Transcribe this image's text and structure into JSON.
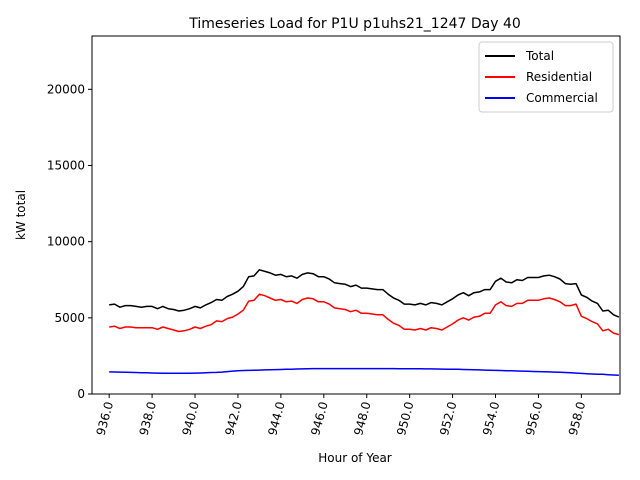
{
  "chart_data": {
    "type": "line",
    "title": "Timeseries Load for P1U p1uhs21_1247  Day 40",
    "xlabel": "Hour of Year",
    "ylabel": "kW total",
    "xlim": [
      935.2,
      959.8
    ],
    "ylim": [
      0,
      23500
    ],
    "xticks": [
      936,
      938,
      940,
      942,
      944,
      946,
      948,
      950,
      952,
      954,
      956,
      958
    ],
    "xtick_labels": [
      "936.0",
      "938.0",
      "940.0",
      "942.0",
      "944.0",
      "946.0",
      "948.0",
      "950.0",
      "952.0",
      "954.0",
      "956.0",
      "958.0"
    ],
    "yticks": [
      0,
      5000,
      10000,
      15000,
      20000
    ],
    "ytick_labels": [
      "0",
      "5000",
      "10000",
      "15000",
      "20000"
    ],
    "grid": false,
    "legend_position": "top-right",
    "x": [
      936.0,
      936.25,
      936.5,
      936.75,
      937.0,
      937.25,
      937.5,
      937.75,
      938.0,
      938.25,
      938.5,
      938.75,
      939.0,
      939.25,
      939.5,
      939.75,
      940.0,
      940.25,
      940.5,
      940.75,
      941.0,
      941.25,
      941.5,
      941.75,
      942.0,
      942.25,
      942.5,
      942.75,
      943.0,
      943.25,
      943.5,
      943.75,
      944.0,
      944.25,
      944.5,
      944.75,
      945.0,
      945.25,
      945.5,
      945.75,
      946.0,
      946.25,
      946.5,
      946.75,
      947.0,
      947.25,
      947.5,
      947.75,
      948.0,
      948.25,
      948.5,
      948.75,
      949.0,
      949.25,
      949.5,
      949.75,
      950.0,
      950.25,
      950.5,
      950.75,
      951.0,
      951.25,
      951.5,
      951.75,
      952.0,
      952.25,
      952.5,
      952.75,
      953.0,
      953.25,
      953.5,
      953.75,
      954.0,
      954.25,
      954.5,
      954.75,
      955.0,
      955.25,
      955.5,
      955.75,
      956.0,
      956.25,
      956.5,
      956.75,
      957.0,
      957.25,
      957.5,
      957.75,
      958.0,
      958.25,
      958.5,
      958.75,
      959.0,
      959.25,
      959.5,
      959.75
    ],
    "series": [
      {
        "name": "Total",
        "color": "#000000",
        "values": [
          5850,
          5900,
          5700,
          5800,
          5800,
          5750,
          5700,
          5750,
          5750,
          5600,
          5750,
          5600,
          5550,
          5450,
          5500,
          5600,
          5750,
          5650,
          5850,
          6000,
          6200,
          6150,
          6400,
          6550,
          6750,
          7050,
          7700,
          7750,
          8150,
          8050,
          7950,
          7800,
          7850,
          7700,
          7750,
          7600,
          7850,
          7950,
          7900,
          7700,
          7700,
          7550,
          7300,
          7250,
          7200,
          7050,
          7150,
          6950,
          6950,
          6900,
          6850,
          6850,
          6550,
          6300,
          6150,
          5900,
          5900,
          5850,
          5950,
          5850,
          6000,
          5950,
          5850,
          6050,
          6250,
          6500,
          6650,
          6450,
          6650,
          6700,
          6850,
          6850,
          7400,
          7600,
          7350,
          7300,
          7500,
          7450,
          7650,
          7650,
          7650,
          7750,
          7800,
          7700,
          7550,
          7250,
          7200,
          7250,
          6500,
          6350,
          6100,
          5950,
          5450,
          5500,
          5200,
          5050
        ]
      },
      {
        "name": "Residential",
        "color": "#ff0000",
        "values": [
          4400,
          4450,
          4300,
          4400,
          4400,
          4350,
          4350,
          4350,
          4350,
          4250,
          4400,
          4300,
          4200,
          4100,
          4150,
          4250,
          4400,
          4300,
          4450,
          4550,
          4800,
          4750,
          4950,
          5050,
          5250,
          5500,
          6100,
          6150,
          6550,
          6450,
          6300,
          6150,
          6200,
          6050,
          6100,
          5950,
          6200,
          6300,
          6250,
          6050,
          6050,
          5900,
          5650,
          5600,
          5550,
          5400,
          5500,
          5300,
          5300,
          5250,
          5200,
          5200,
          4900,
          4650,
          4500,
          4250,
          4250,
          4200,
          4300,
          4200,
          4350,
          4300,
          4200,
          4400,
          4600,
          4850,
          5000,
          4850,
          5050,
          5100,
          5300,
          5300,
          5850,
          6050,
          5800,
          5750,
          5950,
          5950,
          6150,
          6150,
          6150,
          6250,
          6300,
          6200,
          6050,
          5800,
          5800,
          5900,
          5100,
          4950,
          4750,
          4600,
          4150,
          4250,
          4000,
          3900
        ]
      },
      {
        "name": "Commercial",
        "color": "#0000ff",
        "values": [
          1450,
          1445,
          1440,
          1430,
          1420,
          1410,
          1400,
          1390,
          1380,
          1370,
          1365,
          1360,
          1360,
          1360,
          1360,
          1365,
          1370,
          1380,
          1390,
          1410,
          1420,
          1440,
          1470,
          1500,
          1520,
          1540,
          1550,
          1560,
          1570,
          1580,
          1590,
          1600,
          1610,
          1620,
          1630,
          1640,
          1650,
          1660,
          1665,
          1670,
          1670,
          1670,
          1670,
          1670,
          1670,
          1670,
          1670,
          1670,
          1665,
          1665,
          1665,
          1665,
          1665,
          1665,
          1660,
          1660,
          1660,
          1660,
          1655,
          1650,
          1645,
          1640,
          1635,
          1630,
          1625,
          1620,
          1610,
          1600,
          1590,
          1580,
          1570,
          1560,
          1550,
          1540,
          1530,
          1520,
          1510,
          1500,
          1490,
          1480,
          1470,
          1460,
          1450,
          1440,
          1430,
          1410,
          1390,
          1370,
          1350,
          1330,
          1310,
          1300,
          1290,
          1270,
          1250,
          1230
        ]
      }
    ]
  }
}
